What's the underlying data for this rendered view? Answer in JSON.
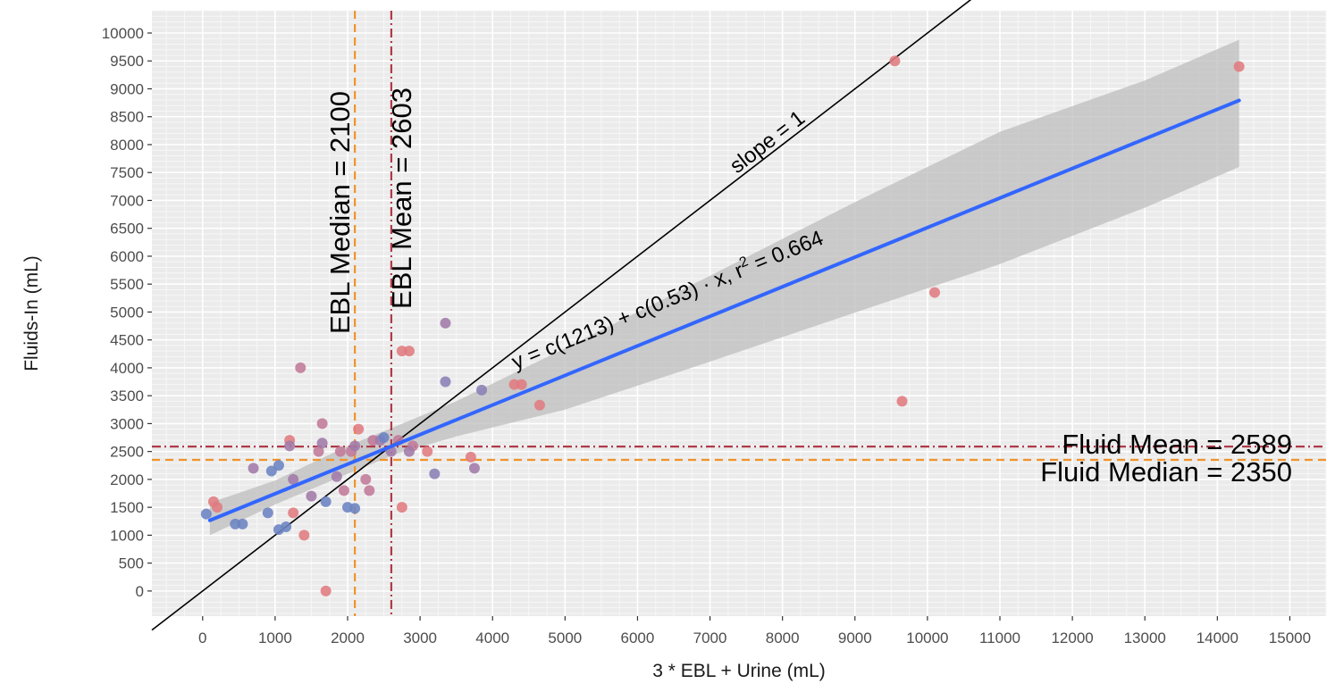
{
  "colors": {
    "panel": "#ebebeb",
    "grid_major": "#ffffff",
    "grid_minor": "#f7f7f7",
    "fit_line": "#3366ff",
    "ribbon": "#bdbdbd",
    "slope_line": "#000000",
    "median_line": "#f0932b",
    "mean_line": "#b03a48"
  },
  "chart_data": {
    "type": "scatter",
    "xlabel": "3 * EBL + Urine (mL)",
    "ylabel": "Fluids-In (mL)",
    "xlim": [
      -700,
      15500
    ],
    "ylim": [
      -450,
      10400
    ],
    "x_ticks": [
      0,
      1000,
      2000,
      3000,
      4000,
      5000,
      6000,
      7000,
      8000,
      9000,
      10000,
      11000,
      12000,
      13000,
      14000,
      15000
    ],
    "x_tick_labels": [
      "0",
      "1000",
      "2000",
      "3000",
      "4000",
      "5000",
      "6000",
      "7000",
      "8000",
      "9000",
      "10000",
      "11000",
      "12000",
      "13000",
      "14000",
      "15000"
    ],
    "y_ticks": [
      0,
      500,
      1000,
      1500,
      2000,
      2500,
      3000,
      3500,
      4000,
      4500,
      5000,
      5500,
      6000,
      6500,
      7000,
      7500,
      8000,
      8500,
      9000,
      9500,
      10000
    ],
    "y_tick_labels": [
      "0",
      "500",
      "1000",
      "1500",
      "2000",
      "2500",
      "3000",
      "3500",
      "4000",
      "4500",
      "5000",
      "5500",
      "6000",
      "6500",
      "7000",
      "7500",
      "8000",
      "8500",
      "9000",
      "9500",
      "10000"
    ],
    "grid": true,
    "points": [
      {
        "x": 50,
        "y": 1380,
        "c": "#6b83c2"
      },
      {
        "x": 150,
        "y": 1600,
        "c": "#e07b80"
      },
      {
        "x": 200,
        "y": 1500,
        "c": "#e07b80"
      },
      {
        "x": 450,
        "y": 1200,
        "c": "#6b83c2"
      },
      {
        "x": 550,
        "y": 1200,
        "c": "#6b83c2"
      },
      {
        "x": 700,
        "y": 2200,
        "c": "#a07aa8"
      },
      {
        "x": 900,
        "y": 1400,
        "c": "#6b83c2"
      },
      {
        "x": 950,
        "y": 2150,
        "c": "#6b83c2"
      },
      {
        "x": 1050,
        "y": 2250,
        "c": "#6b83c2"
      },
      {
        "x": 1050,
        "y": 1100,
        "c": "#6b83c2"
      },
      {
        "x": 1150,
        "y": 1150,
        "c": "#6b83c2"
      },
      {
        "x": 1200,
        "y": 2700,
        "c": "#e07b80"
      },
      {
        "x": 1200,
        "y": 2600,
        "c": "#a07aa8"
      },
      {
        "x": 1250,
        "y": 2000,
        "c": "#a07aa8"
      },
      {
        "x": 1250,
        "y": 1400,
        "c": "#e07b80"
      },
      {
        "x": 1350,
        "y": 4000,
        "c": "#c07a98"
      },
      {
        "x": 1400,
        "y": 1000,
        "c": "#e07b80"
      },
      {
        "x": 1500,
        "y": 1700,
        "c": "#a07aa8"
      },
      {
        "x": 1600,
        "y": 2500,
        "c": "#c07a98"
      },
      {
        "x": 1650,
        "y": 2650,
        "c": "#a07aa8"
      },
      {
        "x": 1650,
        "y": 3000,
        "c": "#c07a98"
      },
      {
        "x": 1700,
        "y": 1600,
        "c": "#6b83c2"
      },
      {
        "x": 1700,
        "y": 0,
        "c": "#e07b80"
      },
      {
        "x": 1850,
        "y": 2050,
        "c": "#a07aa8"
      },
      {
        "x": 1900,
        "y": 2500,
        "c": "#c07a98"
      },
      {
        "x": 1950,
        "y": 1800,
        "c": "#c07a98"
      },
      {
        "x": 2000,
        "y": 1500,
        "c": "#6b83c2"
      },
      {
        "x": 2050,
        "y": 2500,
        "c": "#c07a98"
      },
      {
        "x": 2100,
        "y": 1480,
        "c": "#6b83c2"
      },
      {
        "x": 2100,
        "y": 2600,
        "c": "#a07aa8"
      },
      {
        "x": 2150,
        "y": 2900,
        "c": "#e07b80"
      },
      {
        "x": 2250,
        "y": 2000,
        "c": "#c07a98"
      },
      {
        "x": 2300,
        "y": 1800,
        "c": "#c07a98"
      },
      {
        "x": 2350,
        "y": 2700,
        "c": "#c07a98"
      },
      {
        "x": 2450,
        "y": 2700,
        "c": "#a07aa8"
      },
      {
        "x": 2500,
        "y": 2750,
        "c": "#6b83c2"
      },
      {
        "x": 2600,
        "y": 2500,
        "c": "#a07aa8"
      },
      {
        "x": 2700,
        "y": 2700,
        "c": "#c07a98"
      },
      {
        "x": 2750,
        "y": 4300,
        "c": "#e07b80"
      },
      {
        "x": 2750,
        "y": 1500,
        "c": "#e07b80"
      },
      {
        "x": 2850,
        "y": 4300,
        "c": "#e07b80"
      },
      {
        "x": 2900,
        "y": 2600,
        "c": "#c07a98"
      },
      {
        "x": 2850,
        "y": 2500,
        "c": "#a07aa8"
      },
      {
        "x": 3100,
        "y": 2500,
        "c": "#e07b80"
      },
      {
        "x": 3200,
        "y": 2100,
        "c": "#8a7fb5"
      },
      {
        "x": 3350,
        "y": 4800,
        "c": "#a07aa8"
      },
      {
        "x": 3350,
        "y": 3750,
        "c": "#8a7fb5"
      },
      {
        "x": 3700,
        "y": 2400,
        "c": "#e07b80"
      },
      {
        "x": 3750,
        "y": 2200,
        "c": "#a07aa8"
      },
      {
        "x": 3850,
        "y": 3600,
        "c": "#8a7fb5"
      },
      {
        "x": 4300,
        "y": 3700,
        "c": "#e07b80"
      },
      {
        "x": 4400,
        "y": 3700,
        "c": "#e07b80"
      },
      {
        "x": 4650,
        "y": 3330,
        "c": "#e07b80"
      },
      {
        "x": 9550,
        "y": 9500,
        "c": "#e07b80"
      },
      {
        "x": 9650,
        "y": 3400,
        "c": "#e07b80"
      },
      {
        "x": 10100,
        "y": 5350,
        "c": "#e07b80"
      },
      {
        "x": 14300,
        "y": 9400,
        "c": "#e07b80"
      }
    ],
    "fit": {
      "x_start": 100,
      "x_end": 14300,
      "intercept": 1213,
      "slope": 0.53
    },
    "ribbon": {
      "x": [
        100,
        1000,
        2000,
        2700,
        3500,
        5000,
        7000,
        9000,
        11000,
        13000,
        14300
      ],
      "lower": [
        1000,
        1550,
        2100,
        2470,
        2770,
        3250,
        4110,
        4990,
        5860,
        6870,
        7600
      ],
      "upper": [
        1580,
        1980,
        2600,
        2970,
        3400,
        4350,
        5650,
        6970,
        8230,
        9150,
        9880
      ]
    },
    "reference_lines": {
      "slope_one": {
        "label": "slope = 1",
        "x_start": -700,
        "x_end": 11200
      },
      "ebl_median": {
        "value": 2100,
        "label": "EBL Median = 2100"
      },
      "ebl_mean": {
        "value": 2603,
        "label": "EBL Mean = 2603"
      },
      "fluid_mean": {
        "value": 2589,
        "label": "Fluid Mean = 2589"
      },
      "fluid_median": {
        "value": 2350,
        "label": "Fluid Median = 2350"
      }
    },
    "equation_label": {
      "prefix": "y = c(1213) + c(0.53) · x,  r",
      "sup": "2",
      "suffix": " = 0.664",
      "x": 6450,
      "y": 5100
    }
  }
}
